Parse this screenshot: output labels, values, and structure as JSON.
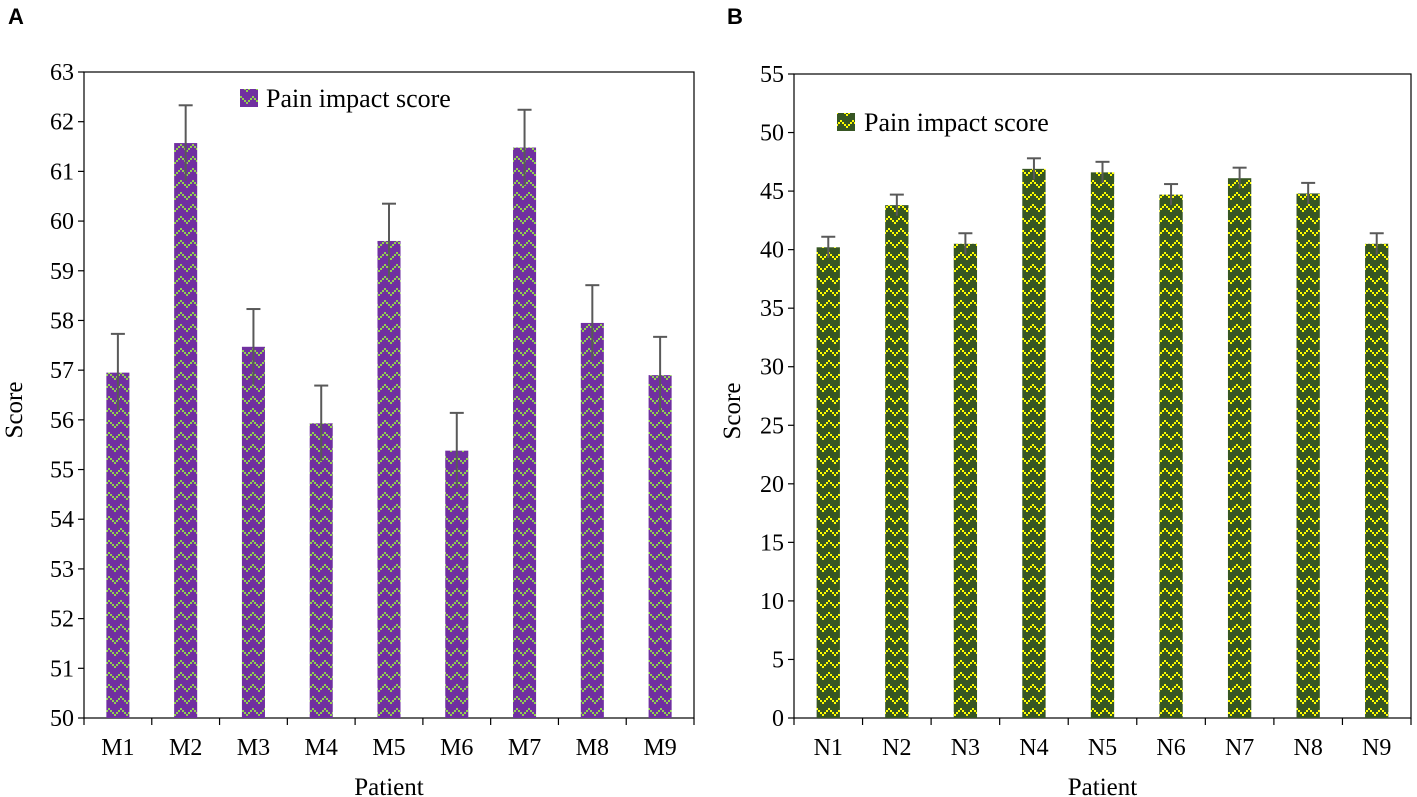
{
  "colors": {
    "chartA_bar": "#7030A0",
    "chartA_pattern": "#92D050",
    "chartB_bar": "#375623",
    "chartB_pattern": "#FFFF00",
    "error_bar": "#595959",
    "axis": "#000000"
  },
  "chart_data": [
    {
      "panel": "A",
      "type": "bar",
      "categories": [
        "M1",
        "M2",
        "M3",
        "M4",
        "M5",
        "M6",
        "M7",
        "M8",
        "M9"
      ],
      "series": [
        {
          "name": "Pain impact score",
          "values": [
            56.95,
            61.57,
            57.47,
            55.93,
            59.6,
            55.38,
            61.48,
            57.95,
            56.9
          ],
          "errors": [
            0.78,
            0.76,
            0.76,
            0.76,
            0.75,
            0.76,
            0.76,
            0.76,
            0.77
          ]
        }
      ],
      "ylim": [
        50,
        63
      ],
      "yticks": [
        "50",
        "51",
        "52",
        "53",
        "54",
        "55",
        "56",
        "57",
        "58",
        "59",
        "60",
        "61",
        "62",
        "63"
      ],
      "xlabel": "Patient",
      "ylabel": "Score",
      "legend": "top-center"
    },
    {
      "panel": "B",
      "type": "bar",
      "categories": [
        "N1",
        "N2",
        "N3",
        "N4",
        "N5",
        "N6",
        "N7",
        "N8",
        "N9"
      ],
      "series": [
        {
          "name": "Pain impact score",
          "values": [
            40.2,
            43.8,
            40.5,
            46.9,
            46.6,
            44.7,
            46.1,
            44.8,
            40.5
          ],
          "errors": [
            0.9,
            0.9,
            0.9,
            0.9,
            0.9,
            0.9,
            0.9,
            0.9,
            0.9
          ]
        }
      ],
      "ylim": [
        0,
        55
      ],
      "yticks": [
        "0",
        "5",
        "10",
        "15",
        "20",
        "25",
        "30",
        "35",
        "40",
        "45",
        "50",
        "55"
      ],
      "xlabel": "Patient",
      "ylabel": "Score",
      "legend": "top-left"
    }
  ]
}
